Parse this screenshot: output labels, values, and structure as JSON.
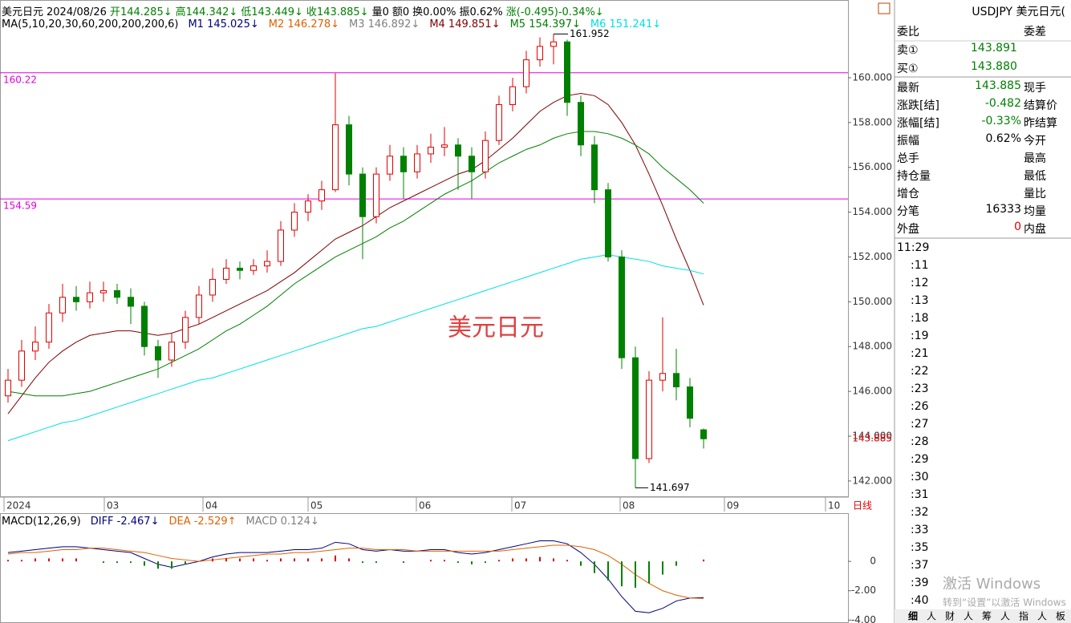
{
  "header": {
    "items": [
      {
        "text": "美元日元",
        "color": "#000"
      },
      {
        "text": "2024/08/26",
        "color": "#000"
      },
      {
        "text": "开144.285↓",
        "color": "#008000"
      },
      {
        "text": "高144.342↓",
        "color": "#008000"
      },
      {
        "text": "低143.449↓",
        "color": "#008000"
      },
      {
        "text": "收143.885↓",
        "color": "#008000"
      },
      {
        "text": "量0",
        "color": "#000"
      },
      {
        "text": "额0",
        "color": "#000"
      },
      {
        "text": "换0.00%",
        "color": "#000"
      },
      {
        "text": "振0.62%",
        "color": "#000"
      },
      {
        "text": "涨(-0.495)-0.34%↓",
        "color": "#008000"
      }
    ]
  },
  "chart_data": [
    {
      "type": "candlestick",
      "title": "美元日元",
      "ma_label": "MA(5,10,20,30,60,200,200,200,6)",
      "up_color": "#e00000",
      "down_color": "#008000",
      "candles": [
        [
          145.8,
          147.0,
          145.5,
          146.5
        ],
        [
          146.5,
          148.3,
          146.2,
          147.8
        ],
        [
          147.8,
          148.9,
          147.4,
          148.2
        ],
        [
          148.2,
          149.9,
          147.9,
          149.5
        ],
        [
          149.5,
          150.8,
          149.1,
          150.2
        ],
        [
          150.2,
          150.7,
          149.6,
          150.0
        ],
        [
          150.0,
          150.9,
          149.7,
          150.4
        ],
        [
          150.4,
          150.9,
          150.0,
          150.5
        ],
        [
          150.5,
          150.8,
          149.9,
          150.2
        ],
        [
          150.2,
          150.6,
          149.0,
          149.8
        ],
        [
          149.8,
          150.0,
          147.6,
          148.0
        ],
        [
          148.0,
          148.3,
          146.6,
          147.4
        ],
        [
          147.4,
          148.6,
          147.1,
          148.2
        ],
        [
          148.2,
          149.6,
          147.9,
          149.3
        ],
        [
          149.3,
          150.7,
          149.0,
          150.3
        ],
        [
          150.3,
          151.5,
          150.0,
          151.0
        ],
        [
          151.0,
          151.9,
          150.8,
          151.5
        ],
        [
          151.5,
          151.8,
          151.0,
          151.4
        ],
        [
          151.4,
          151.9,
          151.2,
          151.6
        ],
        [
          151.6,
          152.3,
          151.3,
          151.8
        ],
        [
          151.8,
          153.6,
          151.6,
          153.2
        ],
        [
          153.2,
          154.4,
          152.9,
          154.0
        ],
        [
          154.0,
          154.8,
          153.6,
          154.5
        ],
        [
          154.5,
          155.4,
          154.1,
          155.0
        ],
        [
          155.0,
          160.2,
          154.9,
          157.9
        ],
        [
          157.9,
          158.3,
          155.2,
          155.7
        ],
        [
          155.7,
          156.0,
          151.9,
          153.8
        ],
        [
          153.8,
          156.0,
          153.5,
          155.7
        ],
        [
          155.7,
          157.0,
          155.4,
          156.5
        ],
        [
          156.5,
          156.9,
          154.6,
          155.8
        ],
        [
          155.8,
          157.0,
          155.5,
          156.6
        ],
        [
          156.6,
          157.5,
          156.2,
          156.9
        ],
        [
          156.9,
          157.8,
          156.5,
          157.0
        ],
        [
          157.0,
          157.3,
          155.0,
          156.5
        ],
        [
          156.5,
          156.9,
          154.6,
          155.8
        ],
        [
          155.8,
          157.6,
          155.5,
          157.2
        ],
        [
          157.2,
          159.2,
          157.0,
          158.8
        ],
        [
          158.8,
          160.0,
          158.5,
          159.6
        ],
        [
          159.6,
          161.2,
          159.3,
          160.8
        ],
        [
          160.8,
          161.8,
          160.5,
          161.4
        ],
        [
          161.4,
          161.952,
          160.6,
          161.6
        ],
        [
          161.6,
          161.7,
          158.3,
          158.9
        ],
        [
          158.9,
          159.2,
          156.5,
          157.0
        ],
        [
          157.0,
          157.4,
          154.4,
          155.0
        ],
        [
          155.0,
          155.3,
          151.8,
          152.0
        ],
        [
          152.0,
          152.3,
          147.0,
          147.5
        ],
        [
          147.5,
          148.0,
          141.697,
          143.0
        ],
        [
          143.0,
          146.9,
          142.8,
          146.5
        ],
        [
          146.5,
          149.3,
          146.0,
          146.8
        ],
        [
          146.8,
          147.9,
          145.6,
          146.2
        ],
        [
          146.2,
          146.6,
          144.4,
          144.8
        ],
        [
          144.285,
          144.342,
          143.449,
          143.885
        ]
      ],
      "series": [
        {
          "name": "M1 145.025↓",
          "color": "#000080"
        },
        {
          "name": "M2 146.278↓",
          "color": "#e06000"
        },
        {
          "name": "M3 146.892↓",
          "color": "#808080"
        },
        {
          "name": "M4 149.851↓",
          "color": "#800000",
          "values": [
            145.0,
            145.8,
            146.6,
            147.3,
            147.8,
            148.2,
            148.5,
            148.6,
            148.7,
            148.7,
            148.6,
            148.5,
            148.6,
            148.8,
            149.0,
            149.3,
            149.6,
            149.9,
            150.2,
            150.5,
            150.9,
            151.3,
            151.8,
            152.3,
            152.8,
            153.1,
            153.4,
            153.8,
            154.2,
            154.5,
            154.8,
            155.1,
            155.4,
            155.7,
            155.9,
            156.3,
            156.8,
            157.3,
            157.9,
            158.5,
            158.9,
            159.2,
            159.3,
            159.2,
            158.8,
            158.0,
            157.0,
            155.7,
            154.3,
            152.8,
            151.4,
            149.851
          ]
        },
        {
          "name": "M5 154.397↓",
          "color": "#008000",
          "values": [
            146.0,
            145.9,
            145.8,
            145.8,
            145.8,
            145.9,
            146.0,
            146.2,
            146.4,
            146.6,
            146.8,
            147.0,
            147.3,
            147.6,
            147.9,
            148.3,
            148.7,
            149.0,
            149.4,
            149.8,
            150.3,
            150.8,
            151.2,
            151.6,
            152.0,
            152.3,
            152.6,
            152.9,
            153.3,
            153.6,
            154.0,
            154.4,
            154.8,
            155.1,
            155.4,
            155.8,
            156.2,
            156.5,
            156.8,
            157.0,
            157.3,
            157.5,
            157.6,
            157.6,
            157.5,
            157.3,
            157.0,
            156.6,
            156.0,
            155.5,
            155.0,
            154.397
          ]
        },
        {
          "name": "M6 151.241↓",
          "color": "#00e0e0",
          "values": [
            143.8,
            144.0,
            144.2,
            144.4,
            144.6,
            144.7,
            144.9,
            145.1,
            145.3,
            145.5,
            145.7,
            145.9,
            146.1,
            146.3,
            146.5,
            146.6,
            146.8,
            147.0,
            147.2,
            147.4,
            147.6,
            147.8,
            148.0,
            148.2,
            148.4,
            148.6,
            148.8,
            148.9,
            149.1,
            149.3,
            149.5,
            149.7,
            149.9,
            150.1,
            150.3,
            150.5,
            150.7,
            150.9,
            151.1,
            151.3,
            151.5,
            151.7,
            151.9,
            152.0,
            152.1,
            152.0,
            151.9,
            151.8,
            151.6,
            151.5,
            151.4,
            151.241
          ]
        }
      ],
      "hlines": [
        {
          "value": 160.22,
          "label": "160.22"
        },
        {
          "value": 154.59,
          "label": "154.59"
        }
      ],
      "hline_color": "#e000e0",
      "ylim": [
        141.28,
        163.47
      ],
      "yticks": [
        {
          "value": 142,
          "label": "142.000"
        },
        {
          "value": 144,
          "label": "144.000"
        },
        {
          "value": 146,
          "label": "146.000"
        },
        {
          "value": 148,
          "label": "148.000"
        },
        {
          "value": 150,
          "label": "150.000"
        },
        {
          "value": 152,
          "label": "152.000"
        },
        {
          "value": 154,
          "label": "154.000"
        },
        {
          "value": 156,
          "label": "156.000"
        },
        {
          "value": 158,
          "label": "158.000"
        },
        {
          "value": 160,
          "label": "160.000"
        }
      ],
      "xlabels": [
        "2024",
        "03",
        "04",
        "05",
        "06",
        "07",
        "08",
        "09",
        "10"
      ],
      "period": "日线"
    },
    {
      "type": "macd",
      "title": "MACD(12,26,9)",
      "series": [
        {
          "name": "DIFF -2.467↓",
          "color": "#000080",
          "values": [
            0.6,
            0.7,
            0.8,
            0.9,
            1.0,
            1.0,
            0.9,
            0.8,
            0.7,
            0.6,
            0.2,
            -0.2,
            -0.4,
            -0.2,
            0.0,
            0.3,
            0.5,
            0.6,
            0.6,
            0.6,
            0.7,
            0.8,
            0.8,
            0.9,
            1.3,
            1.2,
            0.8,
            0.7,
            0.8,
            0.7,
            0.7,
            0.8,
            0.8,
            0.6,
            0.5,
            0.6,
            0.8,
            1.0,
            1.2,
            1.4,
            1.4,
            1.2,
            0.6,
            -0.2,
            -1.2,
            -2.4,
            -3.4,
            -3.5,
            -3.2,
            -2.7,
            -2.5,
            -2.467
          ]
        },
        {
          "name": "DEA -2.529↑",
          "color": "#e06000",
          "values": [
            0.5,
            0.6,
            0.6,
            0.7,
            0.8,
            0.8,
            0.9,
            0.9,
            0.8,
            0.7,
            0.6,
            0.4,
            0.2,
            0.1,
            0.0,
            0.1,
            0.2,
            0.3,
            0.4,
            0.5,
            0.5,
            0.6,
            0.6,
            0.7,
            0.8,
            0.9,
            0.9,
            0.8,
            0.8,
            0.8,
            0.7,
            0.7,
            0.7,
            0.7,
            0.7,
            0.7,
            0.7,
            0.8,
            0.9,
            1.0,
            1.1,
            1.1,
            1.0,
            0.8,
            0.4,
            -0.2,
            -0.9,
            -1.5,
            -2.0,
            -2.3,
            -2.5,
            -2.529
          ]
        },
        {
          "name": "MACD 0.124↓",
          "color": "#808080",
          "bars": true,
          "values": [
            0.1,
            0.1,
            0.2,
            0.2,
            0.2,
            0.2,
            0.0,
            -0.1,
            -0.1,
            -0.1,
            -0.3,
            -0.5,
            -0.5,
            -0.2,
            0.0,
            0.2,
            0.2,
            0.2,
            0.2,
            0.1,
            0.2,
            0.2,
            0.2,
            0.2,
            0.4,
            0.2,
            -0.1,
            -0.1,
            0.0,
            -0.1,
            0.0,
            0.1,
            0.1,
            -0.1,
            -0.2,
            -0.1,
            0.1,
            0.2,
            0.2,
            0.3,
            0.2,
            0.1,
            -0.3,
            -0.8,
            -1.3,
            -1.7,
            -1.8,
            -1.5,
            -0.9,
            -0.3,
            0.0,
            0.124
          ]
        }
      ],
      "ylim": [
        -4.2,
        2.74
      ],
      "yticks": [
        0,
        {
          "value": -2,
          "label": "-2.00"
        },
        {
          "value": -4,
          "label": "-4.00"
        }
      ]
    }
  ],
  "quote": {
    "title": "USDJPY 美元日元(",
    "weibi": "委比",
    "weicha": "委差",
    "sell": {
      "label": "卖①",
      "value": "143.891"
    },
    "buy": {
      "label": "买①",
      "value": "143.880"
    },
    "rows": [
      {
        "label": "最新",
        "value": "143.885",
        "color": "#008000",
        "label2": "现手"
      },
      {
        "label": "涨跌[结]",
        "value": "-0.482",
        "color": "#008000",
        "label2": "结算价"
      },
      {
        "label": "涨幅[结]",
        "value": "-0.33%",
        "color": "#008000",
        "label2": "昨结算"
      },
      {
        "label": "振幅",
        "value": "0.62%",
        "color": "#000",
        "label2": "今开"
      },
      {
        "label": "总手",
        "label2": "最高"
      },
      {
        "label": "持仓量",
        "label2": "最低"
      },
      {
        "label": "增仓",
        "label2": "量比"
      },
      {
        "label": "分笔",
        "value": "16333",
        "color": "#000",
        "label2": "均量"
      },
      {
        "label": "外盘",
        "value": "0",
        "color": "#e00000",
        "label2": "内盘"
      }
    ]
  },
  "ticks_panel": [
    "11:29",
    ":11",
    ":12",
    ":13",
    ":18",
    ":19",
    ":21",
    ":22",
    ":23",
    ":26",
    ":27",
    ":28",
    ":29",
    ":30",
    ":31",
    ":32",
    ":33",
    ":35",
    ":37",
    ":39",
    ":40"
  ],
  "tabs": [
    "细",
    "人",
    "财",
    "人",
    "筹",
    "人",
    "指",
    "人",
    "板"
  ],
  "watermark": {
    "line1": "激活 Windows",
    "line2": "转到“设置”以激活 Windows"
  }
}
